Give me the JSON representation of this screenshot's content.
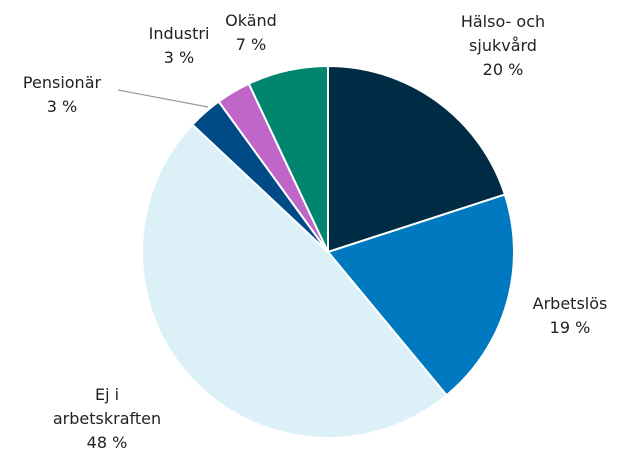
{
  "chart_data": {
    "type": "pie",
    "categories": [
      "Hälso- och sjukvård",
      "Arbetslös",
      "Ej i arbetskraften",
      "Pensionär",
      "Industri",
      "Okänd"
    ],
    "values": [
      20,
      19,
      48,
      3,
      3,
      7
    ],
    "value_labels": [
      "20 %",
      "19 %",
      "48 %",
      "3 %",
      "3 %",
      "7 %"
    ],
    "colors": [
      "#002b45",
      "#0079c1",
      "#dcf0f7",
      "#004b87",
      "#c066c8",
      "#00856f"
    ]
  }
}
